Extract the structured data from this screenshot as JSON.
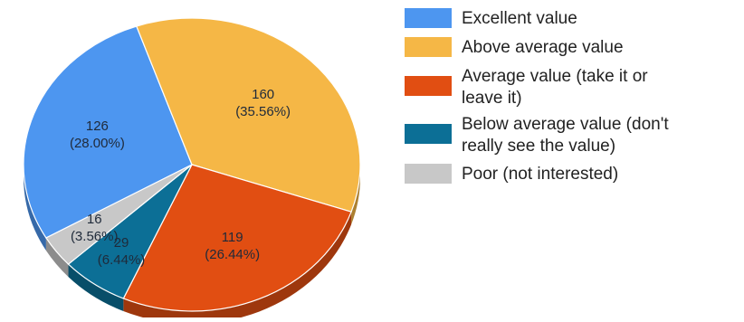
{
  "chart_data": {
    "type": "pie",
    "title": "",
    "slices": [
      {
        "label": "Excellent value",
        "value": 126,
        "percent_label": "(28.00%)",
        "color": "#4d96f0"
      },
      {
        "label": "Above average value",
        "value": 160,
        "percent_label": "(35.56%)",
        "color": "#f5b746"
      },
      {
        "label": "Average value (take it or leave it)",
        "value": 119,
        "percent_label": "(26.44%)",
        "color": "#e14e12"
      },
      {
        "label": "Below average value (don't really see the value)",
        "value": 29,
        "percent_label": "(6.44%)",
        "color": "#0c6f96"
      },
      {
        "label": "Poor (not interested)",
        "value": 16,
        "percent_label": "(3.56%)",
        "color": "#c8c8c8"
      }
    ],
    "legend": {
      "position": "right",
      "entries": [
        {
          "lines": [
            "Excellent value"
          ]
        },
        {
          "lines": [
            "Above average value"
          ]
        },
        {
          "lines": [
            "Average value (take it or",
            "leave it)"
          ]
        },
        {
          "lines": [
            "Below average value (don't",
            "really see the value)"
          ]
        },
        {
          "lines": [
            "Poor (not interested)"
          ]
        }
      ]
    },
    "style": "3d-tilted"
  }
}
